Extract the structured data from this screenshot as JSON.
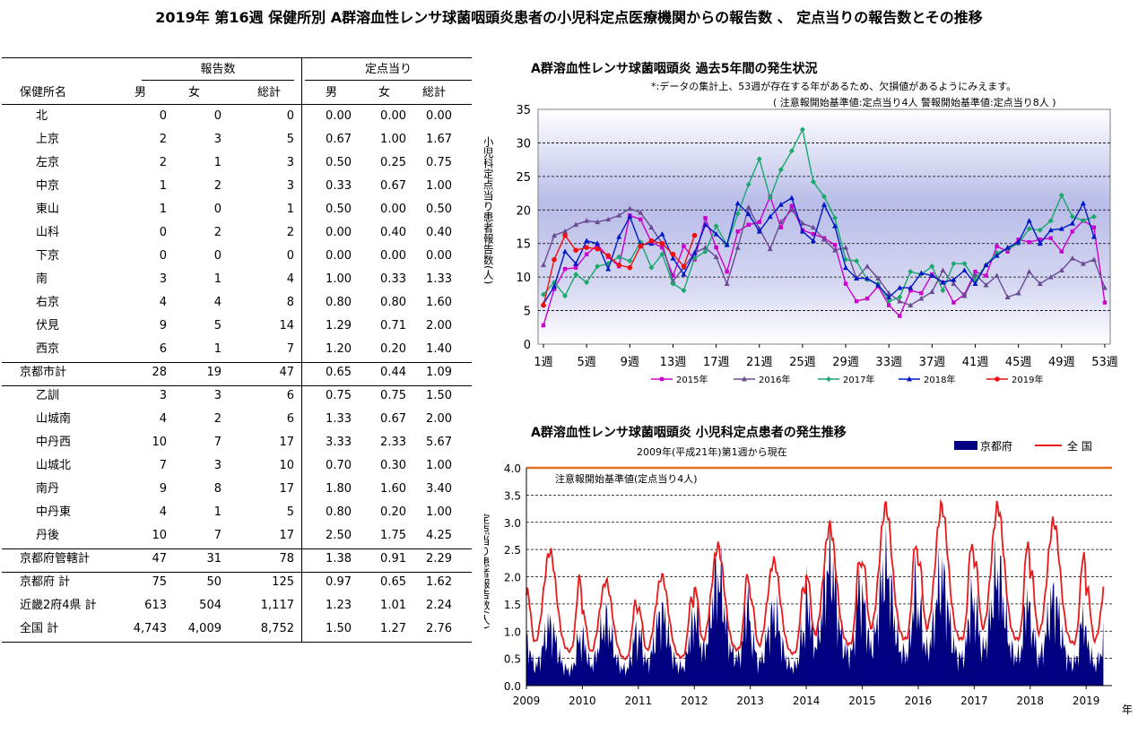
{
  "main_title": "2019年 第16週 保健所別 A群溶血性レンサ球菌咽頭炎患者の小児科定点医療機関からの報告数 、 定点当りの報告数とその推移",
  "table": {
    "group_headers": [
      "報告数",
      "定点当り"
    ],
    "col_headers": [
      "保健所名",
      "男",
      "女",
      "総計",
      "男",
      "女",
      "総計"
    ],
    "rows": [
      {
        "name": "北",
        "cells": [
          "0",
          "0",
          "0",
          "0.00",
          "0.00",
          "0.00"
        ],
        "indent": true
      },
      {
        "name": "上京",
        "cells": [
          "2",
          "3",
          "5",
          "0.67",
          "1.00",
          "1.67"
        ],
        "indent": true
      },
      {
        "name": "左京",
        "cells": [
          "2",
          "1",
          "3",
          "0.50",
          "0.25",
          "0.75"
        ],
        "indent": true
      },
      {
        "name": "中京",
        "cells": [
          "1",
          "2",
          "3",
          "0.33",
          "0.67",
          "1.00"
        ],
        "indent": true
      },
      {
        "name": "東山",
        "cells": [
          "1",
          "0",
          "1",
          "0.50",
          "0.00",
          "0.50"
        ],
        "indent": true
      },
      {
        "name": "山科",
        "cells": [
          "0",
          "2",
          "2",
          "0.00",
          "0.40",
          "0.40"
        ],
        "indent": true
      },
      {
        "name": "下京",
        "cells": [
          "0",
          "0",
          "0",
          "0.00",
          "0.00",
          "0.00"
        ],
        "indent": true
      },
      {
        "name": "南",
        "cells": [
          "3",
          "1",
          "4",
          "1.00",
          "0.33",
          "1.33"
        ],
        "indent": true
      },
      {
        "name": "右京",
        "cells": [
          "4",
          "4",
          "8",
          "0.80",
          "0.80",
          "1.60"
        ],
        "indent": true
      },
      {
        "name": "伏見",
        "cells": [
          "9",
          "5",
          "14",
          "1.29",
          "0.71",
          "2.00"
        ],
        "indent": true
      },
      {
        "name": "西京",
        "cells": [
          "6",
          "1",
          "7",
          "1.20",
          "0.20",
          "1.40"
        ],
        "indent": true
      },
      {
        "name": "京都市計",
        "cells": [
          "28",
          "19",
          "47",
          "0.65",
          "0.44",
          "1.09"
        ],
        "indent": false
      },
      {
        "name": "乙訓",
        "cells": [
          "3",
          "3",
          "6",
          "0.75",
          "0.75",
          "1.50"
        ],
        "indent": true
      },
      {
        "name": "山城南",
        "cells": [
          "4",
          "2",
          "6",
          "1.33",
          "0.67",
          "2.00"
        ],
        "indent": true
      },
      {
        "name": "中丹西",
        "cells": [
          "10",
          "7",
          "17",
          "3.33",
          "2.33",
          "5.67"
        ],
        "indent": true
      },
      {
        "name": "山城北",
        "cells": [
          "7",
          "3",
          "10",
          "0.70",
          "0.30",
          "1.00"
        ],
        "indent": true
      },
      {
        "name": "南丹",
        "cells": [
          "9",
          "8",
          "17",
          "1.80",
          "1.60",
          "3.40"
        ],
        "indent": true
      },
      {
        "name": "中丹東",
        "cells": [
          "4",
          "1",
          "5",
          "0.80",
          "0.20",
          "1.00"
        ],
        "indent": true
      },
      {
        "name": "丹後",
        "cells": [
          "10",
          "7",
          "17",
          "2.50",
          "1.75",
          "4.25"
        ],
        "indent": true
      },
      {
        "name": "京都府管轄計",
        "cells": [
          "47",
          "31",
          "78",
          "1.38",
          "0.91",
          "2.29"
        ],
        "indent": false
      },
      {
        "name": "京都府 計",
        "cells": [
          "75",
          "50",
          "125",
          "0.97",
          "0.65",
          "1.62"
        ],
        "indent": false
      },
      {
        "name": "近畿2府4県 計",
        "cells": [
          "613",
          "504",
          "1,117",
          "1.23",
          "1.01",
          "2.24"
        ],
        "indent": false
      },
      {
        "name": "全国 計",
        "cells": [
          "4,743",
          "4,009",
          "8,752",
          "1.50",
          "1.27",
          "2.76"
        ],
        "indent": false
      }
    ]
  },
  "chart_data": [
    {
      "type": "line",
      "title": "A群溶血性レンサ球菌咽頭炎 過去5年間の発生状況",
      "note1": "*:データの集計上、53週が存在する年があるため、欠損値があるようにみえます。",
      "note2": "( 注意報開始基準値:定点当り4人  警報開始基準値:定点当り8人 )",
      "ylabel": "小児科定点当り患者報告数(人)",
      "ylim": [
        0,
        35
      ],
      "yticks": [
        "0",
        "5",
        "10",
        "15",
        "20",
        "25",
        "30",
        "35"
      ],
      "xlim": [
        1,
        53
      ],
      "xticks": [
        "1週",
        "5週",
        "9週",
        "13週",
        "17週",
        "21週",
        "25週",
        "29週",
        "33週",
        "37週",
        "41週",
        "45週",
        "49週",
        "53週"
      ],
      "grid": true,
      "legend": "bottom",
      "series": [
        {
          "name": "2015年",
          "color": "#cc00cc",
          "marker": "square",
          "values": [
            2.8,
            8.2,
            11.2,
            11.4,
            13.4,
            14.8,
            13.0,
            11.6,
            19.2,
            18.6,
            15.2,
            14.4,
            10.2,
            14.6,
            12.6,
            18.8,
            14.4,
            10.8,
            16.8,
            17.8,
            18.2,
            22.0,
            17.4,
            20.6,
            17.0,
            16.4,
            15.8,
            14.8,
            9.0,
            6.4,
            6.8,
            8.6,
            5.8,
            4.2,
            8.0,
            7.6,
            10.4,
            9.2,
            6.2,
            7.4,
            10.8,
            10.2,
            14.6,
            13.8,
            15.6,
            15.2,
            15.6,
            15.8,
            13.8,
            16.8,
            18.4,
            17.4,
            6.2
          ]
        },
        {
          "name": "2016年",
          "color": "#6a4c93",
          "marker": "triangle",
          "values": [
            11.8,
            16.2,
            16.8,
            17.8,
            18.4,
            18.2,
            18.6,
            19.2,
            20.2,
            19.6,
            17.4,
            15.0,
            9.4,
            11.4,
            13.6,
            14.4,
            13.0,
            9.0,
            14.4,
            20.4,
            17.2,
            14.2,
            18.2,
            20.0,
            18.0,
            17.4,
            15.6,
            14.0,
            14.4,
            9.8,
            11.6,
            9.8,
            7.6,
            6.4,
            5.8,
            6.8,
            7.8,
            11.0,
            9.0,
            7.2,
            10.4,
            8.8,
            10.2,
            7.0,
            7.6,
            10.8,
            9.0,
            10.0,
            11.0,
            12.8,
            12.0,
            12.6,
            8.4
          ]
        },
        {
          "name": "2017年",
          "color": "#1aa86b",
          "marker": "diamond",
          "values": [
            7.4,
            9.2,
            7.2,
            10.4,
            9.2,
            11.6,
            12.0,
            13.0,
            12.4,
            15.2,
            11.4,
            13.4,
            9.0,
            8.0,
            12.8,
            13.8,
            17.6,
            14.8,
            19.4,
            23.8,
            27.6,
            21.8,
            26.0,
            28.8,
            32.0,
            24.2,
            22.0,
            18.8,
            12.6,
            12.4,
            9.6,
            9.0,
            6.4,
            7.0,
            10.8,
            10.4,
            11.6,
            8.0,
            12.0,
            12.0,
            9.6,
            11.8,
            13.6,
            14.2,
            15.0,
            17.2,
            17.0,
            18.4,
            22.2,
            19.0,
            18.4,
            19.0,
            null
          ]
        },
        {
          "name": "2018年",
          "color": "#0018c8",
          "marker": "triangle",
          "values": [
            6.0,
            8.6,
            13.8,
            12.0,
            15.4,
            15.0,
            11.2,
            16.0,
            19.0,
            14.8,
            15.0,
            16.4,
            12.8,
            10.4,
            13.6,
            17.8,
            16.4,
            14.8,
            21.0,
            19.4,
            16.8,
            19.0,
            20.8,
            21.8,
            16.8,
            15.4,
            20.8,
            17.6,
            11.4,
            9.8,
            9.8,
            8.8,
            7.0,
            8.4,
            8.4,
            10.6,
            10.2,
            9.2,
            9.6,
            11.0,
            9.0,
            11.8,
            13.2,
            14.4,
            15.2,
            18.4,
            15.0,
            17.0,
            17.2,
            18.0,
            21.0,
            16.0,
            null
          ]
        },
        {
          "name": "2019年",
          "color": "#ee1111",
          "marker": "circle",
          "values": [
            5.8,
            12.6,
            16.2,
            14.0,
            14.4,
            14.2,
            13.2,
            11.8,
            11.4,
            14.6,
            15.4,
            15.0,
            13.4,
            11.6,
            16.2,
            null,
            null,
            null,
            null,
            null,
            null,
            null,
            null,
            null,
            null,
            null,
            null,
            null,
            null,
            null,
            null,
            null,
            null,
            null,
            null,
            null,
            null,
            null,
            null,
            null,
            null,
            null,
            null,
            null,
            null,
            null,
            null,
            null,
            null,
            null,
            null,
            null,
            null
          ]
        }
      ]
    },
    {
      "type": "area",
      "title": "A群溶血性レンサ球菌咽頭炎 小児科定点患者の発生推移",
      "subtitle": "2009年(平成21年)第1週から現在",
      "ylabel": "定点当り患者報告数(人)",
      "xlabel": "年",
      "ylim": [
        0,
        4
      ],
      "yticks": [
        "0.0",
        "0.5",
        "1.0",
        "1.5",
        "2.0",
        "2.5",
        "3.0",
        "3.5",
        "4.0"
      ],
      "x": [
        "2009",
        "2010",
        "2011",
        "2012",
        "2013",
        "2014",
        "2015",
        "2016",
        "2017",
        "2018",
        "2019"
      ],
      "threshold_label": "注意報開始基準値(定点当り4人)",
      "threshold_value": 4.0,
      "legend": "top-right",
      "series": [
        {
          "name": "京都府",
          "color": "#000080"
        },
        {
          "name": "全 国",
          "color": "#e81a1a"
        }
      ],
      "yearly_profile": [
        {
          "year": "2009",
          "kyoto_peak": 1.5,
          "national_peak": 2.7
        },
        {
          "year": "2010",
          "kyoto_peak": 1.6,
          "national_peak": 2.1
        },
        {
          "year": "2011",
          "kyoto_peak": 1.8,
          "national_peak": 2.2
        },
        {
          "year": "2012",
          "kyoto_peak": 2.7,
          "national_peak": 2.8
        },
        {
          "year": "2013",
          "kyoto_peak": 1.8,
          "national_peak": 2.5
        },
        {
          "year": "2014",
          "kyoto_peak": 3.1,
          "national_peak": 3.2
        },
        {
          "year": "2015",
          "kyoto_peak": 3.0,
          "national_peak": 3.6
        },
        {
          "year": "2016",
          "kyoto_peak": 2.7,
          "national_peak": 3.6
        },
        {
          "year": "2017",
          "kyoto_peak": 2.8,
          "national_peak": 3.6
        },
        {
          "year": "2018",
          "kyoto_peak": 2.2,
          "national_peak": 3.3
        },
        {
          "year": "2019",
          "kyoto_peak": 1.6,
          "national_peak": 2.8
        }
      ]
    }
  ]
}
